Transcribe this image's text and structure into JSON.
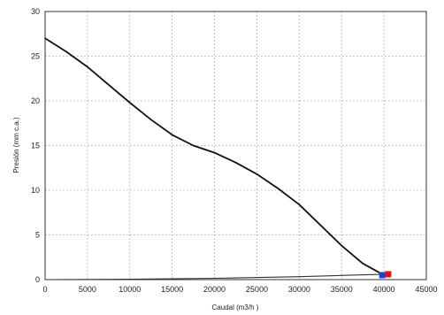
{
  "chart_data": {
    "type": "line",
    "title": "",
    "xlabel": "Caudal (m3/h )",
    "ylabel": "Presión (mm c.a.)",
    "xlim": [
      0,
      45000
    ],
    "ylim": [
      0,
      30
    ],
    "x_ticks": [
      "0",
      "5000",
      "10000",
      "15000",
      "20000",
      "25000",
      "30000",
      "35000",
      "40000",
      "45000"
    ],
    "y_ticks": [
      "0",
      "5",
      "10",
      "15",
      "20",
      "25",
      "30"
    ],
    "grid": true,
    "series": [
      {
        "color": "#111111",
        "x": [
          0,
          2500,
          5000,
          7500,
          10000,
          12500,
          15000,
          17500,
          20000,
          22500,
          25000,
          27500,
          30000,
          32500,
          35000,
          37500,
          40000
        ],
        "y": [
          27.0,
          25.5,
          23.8,
          21.8,
          19.8,
          17.9,
          16.2,
          15.0,
          14.2,
          13.1,
          11.8,
          10.2,
          8.4,
          6.1,
          3.8,
          1.8,
          0.5
        ]
      },
      {
        "color": "#333333",
        "x": [
          0,
          10000,
          20000,
          30000,
          40000
        ],
        "y": [
          0.0,
          0.04,
          0.15,
          0.33,
          0.6
        ]
      }
    ],
    "points": [
      {
        "x": 39800,
        "y": 0.5,
        "color": "#1f3fd6"
      },
      {
        "x": 40500,
        "y": 0.6,
        "color": "#e01010"
      }
    ]
  }
}
